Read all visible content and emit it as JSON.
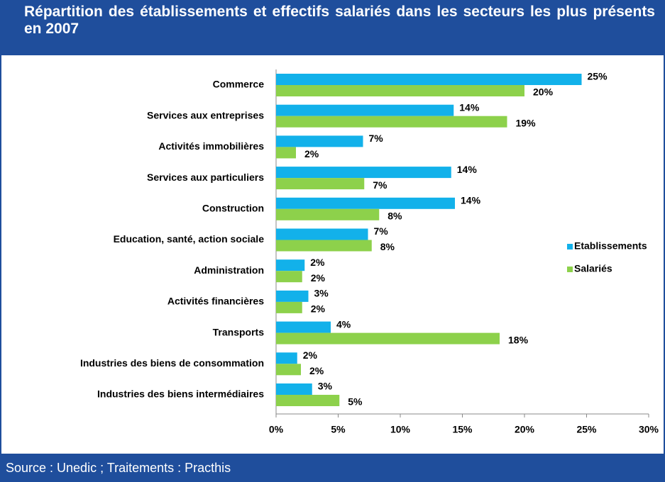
{
  "chart_data": {
    "type": "hbar",
    "title": "Répartition des établissements et effectifs salariés dans les secteurs les plus présents en 2007",
    "source": "Source : Unedic ; Traitements : Practhis",
    "categories": [
      "Commerce",
      "Services aux entreprises",
      "Activités immobilières",
      "Services aux particuliers",
      "Construction",
      "Education, santé, action sociale",
      "Administration",
      "Activités financières",
      "Transports",
      "Industries des biens de consommation",
      "Industries des biens intermédiaires"
    ],
    "series": [
      {
        "name": "Etablissements",
        "color": "#12b1ea",
        "values": [
          24.6,
          14.3,
          7.0,
          14.1,
          14.4,
          7.4,
          2.3,
          2.6,
          4.4,
          1.7,
          2.9
        ],
        "value_labels": [
          "25%",
          "14%",
          "7%",
          "14%",
          "14%",
          "7%",
          "2%",
          "3%",
          "4%",
          "2%",
          "3%"
        ]
      },
      {
        "name": "Salariés",
        "color": "#8dd14b",
        "values": [
          20.0,
          18.6,
          1.6,
          7.1,
          8.3,
          7.7,
          2.1,
          2.1,
          18.0,
          2.0,
          5.1
        ],
        "value_labels": [
          "20%",
          "19%",
          "2%",
          "7%",
          "8%",
          "8%",
          "2%",
          "2%",
          "18%",
          "2%",
          "5%"
        ]
      }
    ],
    "xlim": [
      0,
      30
    ],
    "xticks": [
      {
        "value": 0,
        "label": "0%"
      },
      {
        "value": 5,
        "label": "5%"
      },
      {
        "value": 10,
        "label": "10%"
      },
      {
        "value": 15,
        "label": "15%"
      },
      {
        "value": 20,
        "label": "20%"
      },
      {
        "value": 25,
        "label": "25%"
      },
      {
        "value": 30,
        "label": "30%"
      }
    ],
    "legend": "right"
  }
}
